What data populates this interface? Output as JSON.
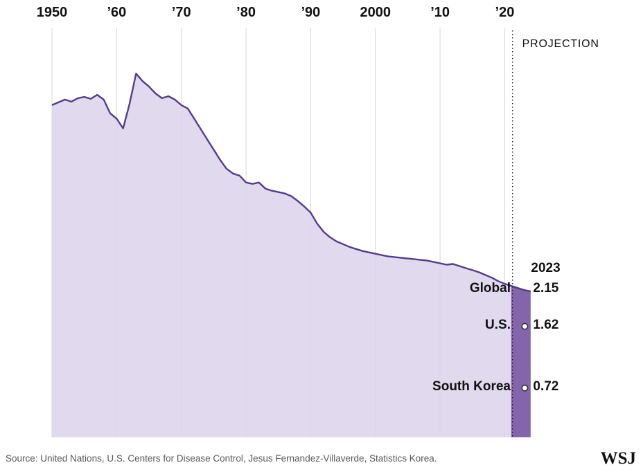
{
  "chart_data": {
    "type": "area",
    "x_axis": {
      "tick_labels": [
        "1950",
        "’60",
        "’70",
        "’80",
        "’90",
        "2000",
        "’10",
        "’20"
      ],
      "tick_years": [
        1950,
        1960,
        1970,
        1980,
        1990,
        2000,
        2010,
        2020
      ],
      "range": [
        1950,
        2023.7
      ]
    },
    "y_axis": {
      "range": [
        0,
        6
      ],
      "visible": false
    },
    "grid": "vertical",
    "projection": {
      "label": "PROJECTION",
      "line_year": 2021.2,
      "band_years": [
        2021,
        2023.7
      ]
    },
    "series": [
      {
        "name": "Global",
        "x_start": 1950,
        "x_step": 1,
        "values": [
          4.85,
          4.89,
          4.93,
          4.9,
          4.95,
          4.97,
          4.94,
          5.0,
          4.93,
          4.73,
          4.65,
          4.51,
          4.87,
          5.31,
          5.2,
          5.12,
          5.02,
          4.95,
          4.98,
          4.93,
          4.85,
          4.8,
          4.65,
          4.5,
          4.35,
          4.2,
          4.05,
          3.92,
          3.85,
          3.82,
          3.72,
          3.7,
          3.72,
          3.63,
          3.6,
          3.58,
          3.56,
          3.52,
          3.45,
          3.37,
          3.28,
          3.12,
          3.0,
          2.92,
          2.86,
          2.82,
          2.78,
          2.75,
          2.72,
          2.7,
          2.68,
          2.66,
          2.64,
          2.63,
          2.62,
          2.61,
          2.6,
          2.59,
          2.58,
          2.56,
          2.54,
          2.52,
          2.53,
          2.5,
          2.47,
          2.44,
          2.41,
          2.37,
          2.33,
          2.28,
          2.24,
          2.21,
          2.18,
          2.15,
          2.13
        ]
      }
    ],
    "annotations": {
      "year_label": "2023",
      "marker_year": 2023.1,
      "markers": [
        {
          "label": "Global",
          "value_label": "2.15",
          "value": 2.15,
          "dot": false
        },
        {
          "label": "U.S.",
          "value_label": "1.62",
          "value": 1.62,
          "dot": true
        },
        {
          "label": "South Korea",
          "value_label": "0.72",
          "value": 0.72,
          "dot": true
        }
      ]
    },
    "colors": {
      "area_fill": "#dcd2ea",
      "line": "#563a8f",
      "projection_band": "#8465ab",
      "gridline": "#d8d8d8",
      "dot_fill": "#ffffff",
      "dot_stroke": "#333333",
      "dotted_line": "#1a1a1a"
    }
  },
  "footer": {
    "source": "Source: United Nations, U.S. Centers for Disease Control, Jesus Fernandez-Villaverde, Statistics Korea.",
    "logo": "WSJ"
  }
}
